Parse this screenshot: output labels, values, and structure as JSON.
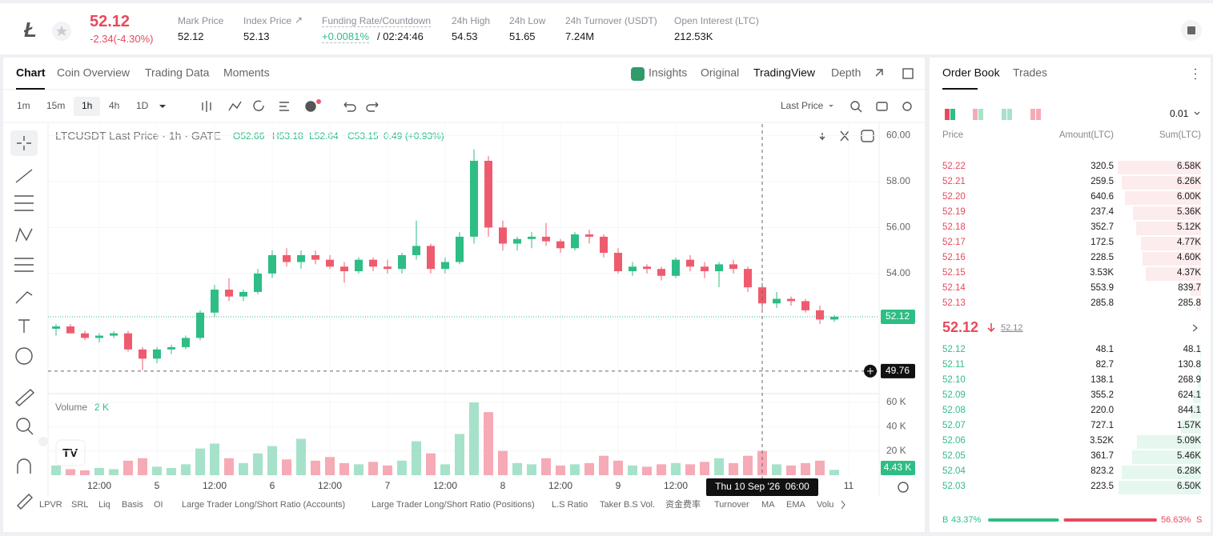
{
  "header": {
    "price": "52.12",
    "change": "-2.34(-4.30%)",
    "stats": [
      {
        "label": "Mark Price",
        "value": "52.12"
      },
      {
        "label": "Index Price",
        "value": "52.13"
      },
      {
        "label": "Funding Rate/Countdown",
        "value": "+0.0081%",
        "extra": "/ 02:24:46"
      },
      {
        "label": "24h High",
        "value": "54.53"
      },
      {
        "label": "24h Low",
        "value": "51.65"
      },
      {
        "label": "24h Turnover (USDT)",
        "value": "7.24M"
      },
      {
        "label": "Open Interest (LTC)",
        "value": "212.53K"
      }
    ]
  },
  "chart_panel": {
    "tabs": [
      "Chart",
      "Coin Overview",
      "Trading Data",
      "Moments"
    ],
    "views": [
      "Insights",
      "Original",
      "TradingView",
      "Depth"
    ],
    "intervals": [
      "1m",
      "15m",
      "1h",
      "4h",
      "1D"
    ],
    "price_source": "Last Price",
    "indicators": [
      "LPVR",
      "SRL",
      "Liq",
      "Basis",
      "OI",
      "Large Trader Long/Short Ratio (Accounts)",
      "Large Trader Long/Short Ratio (Positions)",
      "L.S Ratio",
      "Taker B.S Vol.",
      "资金费率",
      "Turnover",
      "MA",
      "EMA",
      "Volu"
    ]
  },
  "chart_data": {
    "type": "candlestick",
    "legend": {
      "title": "LTCUSDT Last Price · 1h · GATE",
      "open": "O52.66",
      "high": "H53.18",
      "low": "L52.64",
      "close": "C53.15",
      "change": "0.49 (+0.93%)"
    },
    "categories": [
      null,
      null,
      null,
      "12:00",
      null,
      null,
      null,
      "5",
      null,
      null,
      null,
      "12:00",
      null,
      null,
      null,
      "6",
      null,
      null,
      null,
      "12:00",
      null,
      null,
      null,
      "7",
      null,
      null,
      null,
      "12:00",
      null,
      null,
      null,
      "8",
      null,
      null,
      null,
      "12:00",
      null,
      null,
      null,
      "9",
      null,
      null,
      null,
      "12:00",
      null,
      null,
      null,
      null,
      null,
      null,
      null,
      null,
      null,
      null,
      null,
      "11"
    ],
    "open": [
      51.6,
      51.7,
      51.4,
      51.2,
      51.3,
      51.4,
      50.7,
      50.3,
      50.7,
      50.8,
      51.2,
      52.3,
      53.3,
      53.0,
      53.2,
      54.0,
      54.8,
      54.5,
      54.8,
      54.6,
      54.3,
      54.1,
      54.6,
      54.3,
      54.2,
      54.8,
      55.2,
      54.2,
      54.5,
      55.6,
      58.9,
      56.0,
      55.3,
      55.5,
      55.6,
      55.4,
      55.1,
      55.7,
      55.6,
      54.9,
      54.1,
      54.3,
      54.2,
      53.9,
      54.6,
      54.3,
      54.1,
      54.4,
      54.2,
      53.4,
      52.7,
      52.9,
      52.8,
      52.4,
      52.0,
      null
    ],
    "high": [
      51.8,
      51.8,
      51.5,
      51.4,
      51.5,
      51.5,
      50.8,
      50.8,
      50.9,
      51.3,
      52.4,
      53.5,
      53.8,
      53.3,
      54.2,
      55.0,
      55.1,
      55.0,
      55.0,
      54.8,
      54.5,
      54.7,
      54.7,
      54.6,
      54.9,
      56.3,
      55.3,
      54.7,
      55.8,
      59.4,
      59.1,
      56.3,
      55.6,
      55.8,
      56.2,
      55.5,
      55.8,
      55.9,
      55.7,
      55.1,
      54.5,
      54.4,
      54.3,
      54.7,
      54.8,
      54.5,
      54.5,
      54.6,
      54.3,
      53.6,
      53.2,
      53.0,
      52.9,
      52.6,
      52.2,
      null
    ],
    "low": [
      51.3,
      51.4,
      51.1,
      51.0,
      51.2,
      50.6,
      49.8,
      50.1,
      50.5,
      50.7,
      51.1,
      52.1,
      52.8,
      52.8,
      53.1,
      53.8,
      54.3,
      54.2,
      54.4,
      54.2,
      53.6,
      54.0,
      54.1,
      54.0,
      54.0,
      54.6,
      54.0,
      54.0,
      54.4,
      55.3,
      55.6,
      55.0,
      55.0,
      55.1,
      55.2,
      54.9,
      55.0,
      55.3,
      54.7,
      54.0,
      53.9,
      54.0,
      53.7,
      53.8,
      54.1,
      53.8,
      53.4,
      54.0,
      53.2,
      52.4,
      52.5,
      52.6,
      52.3,
      51.8,
      51.9,
      null
    ],
    "close": [
      51.7,
      51.4,
      51.2,
      51.3,
      51.4,
      50.7,
      50.3,
      50.7,
      50.8,
      51.2,
      52.3,
      53.3,
      53.0,
      53.2,
      54.0,
      54.8,
      54.5,
      54.8,
      54.6,
      54.3,
      54.1,
      54.6,
      54.3,
      54.2,
      54.8,
      55.2,
      54.2,
      54.5,
      55.6,
      58.9,
      56.0,
      55.3,
      55.5,
      55.6,
      55.4,
      55.1,
      55.7,
      55.6,
      54.9,
      54.1,
      54.3,
      54.2,
      53.9,
      54.6,
      54.3,
      54.1,
      54.4,
      54.2,
      53.4,
      52.7,
      52.9,
      52.8,
      52.4,
      52.0,
      52.12,
      null
    ],
    "volume": [
      8000,
      5000,
      4000,
      6000,
      5000,
      12000,
      14000,
      7000,
      6000,
      9000,
      22000,
      26000,
      14000,
      10000,
      18000,
      24000,
      13000,
      30000,
      12000,
      15000,
      10000,
      9000,
      11000,
      8000,
      12000,
      28000,
      18000,
      9000,
      34000,
      60000,
      52000,
      20000,
      10000,
      9000,
      14000,
      8000,
      9000,
      10000,
      16000,
      12000,
      8000,
      7000,
      9000,
      10000,
      9000,
      11000,
      14000,
      10000,
      16000,
      20000,
      9000,
      8000,
      10000,
      12000,
      4430,
      null
    ],
    "up_color": "#2ebd85",
    "down_color": "#ef5b6e",
    "up_volume_color": "#a6e2ca",
    "down_volume_color": "#f6aab5",
    "ylim": [
      48.78,
      60.5
    ],
    "yticks": [
      {
        "value": 54,
        "label": "54.00"
      },
      {
        "value": 56,
        "label": "56.00"
      },
      {
        "value": 58,
        "label": "58.00"
      },
      {
        "value": 60,
        "label": "60.00"
      }
    ],
    "volume_ylim": [
      0,
      66600
    ],
    "volume_yticks": [
      {
        "value": 20000,
        "label": "20 K"
      },
      {
        "value": 40000,
        "label": "40 K"
      },
      {
        "value": 60000,
        "label": "60 K"
      }
    ],
    "volume_title": "Volume",
    "volume_value": "2 K",
    "last_volume_label": "4.43 K",
    "last_price": 52.12,
    "crosshair_price": 49.76,
    "crosshair_time": "Thu 10 Sep '26  06:00",
    "grid": true
  },
  "order_book": {
    "tabs": [
      "Order Book",
      "Trades"
    ],
    "precision": "0.01",
    "columns": [
      "Price",
      "Amount(LTC)",
      "Sum(LTC)"
    ],
    "asks": [
      [
        "52.22",
        "320.5",
        "6.58K"
      ],
      [
        "52.21",
        "259.5",
        "6.26K"
      ],
      [
        "52.20",
        "640.6",
        "6.00K"
      ],
      [
        "52.19",
        "237.4",
        "5.36K"
      ],
      [
        "52.18",
        "352.7",
        "5.12K"
      ],
      [
        "52.17",
        "172.5",
        "4.77K"
      ],
      [
        "52.16",
        "228.5",
        "4.60K"
      ],
      [
        "52.15",
        "3.53K",
        "4.37K"
      ],
      [
        "52.14",
        "553.9",
        "839.7"
      ],
      [
        "52.13",
        "285.8",
        "285.8"
      ]
    ],
    "mid": {
      "price": "52.12",
      "mark": "52.12"
    },
    "bids": [
      [
        "52.12",
        "48.1",
        "48.1"
      ],
      [
        "52.11",
        "82.7",
        "130.8"
      ],
      [
        "52.10",
        "138.1",
        "268.9"
      ],
      [
        "52.09",
        "355.2",
        "624.1"
      ],
      [
        "52.08",
        "220.0",
        "844.1"
      ],
      [
        "52.07",
        "727.1",
        "1.57K"
      ],
      [
        "52.06",
        "3.52K",
        "5.09K"
      ],
      [
        "52.05",
        "361.7",
        "5.46K"
      ],
      [
        "52.04",
        "823.2",
        "6.28K"
      ],
      [
        "52.03",
        "223.5",
        "6.50K"
      ]
    ],
    "ratio": {
      "buy_label": "B",
      "buy": 43.37,
      "buy_text": "43.37%",
      "sell": 56.63,
      "sell_text": "56.63%",
      "sell_label": "S"
    }
  }
}
